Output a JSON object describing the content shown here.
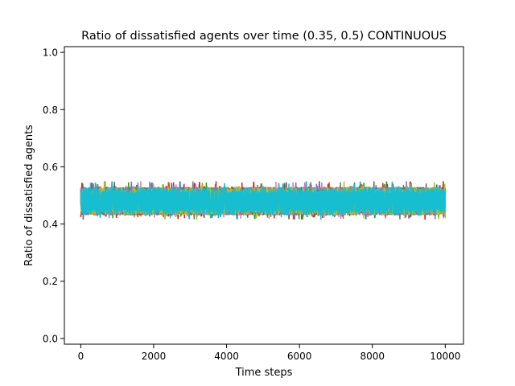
{
  "chart_data": {
    "type": "line",
    "title": "Ratio of dissatisfied agents over time (0.35, 0.5) CONTINUOUS",
    "xlabel": "Time steps",
    "ylabel": "Ratio of dissatisfied agents",
    "xlim": [
      -450,
      10500
    ],
    "ylim": [
      -0.02,
      1.02
    ],
    "x_ticks": [
      0,
      2000,
      4000,
      6000,
      8000,
      10000
    ],
    "y_ticks": [
      0.0,
      0.2,
      0.4,
      0.6,
      0.8,
      1.0
    ],
    "y_tick_labels": [
      "0.0",
      "0.2",
      "0.4",
      "0.6",
      "0.8",
      "1.0"
    ],
    "grid": false,
    "legend": "none",
    "x_range": [
      0,
      10000
    ],
    "series_count": 10,
    "series_mean": 0.48,
    "series_band": [
      0.43,
      0.53
    ],
    "series_extremes": [
      0.415,
      0.55
    ],
    "series_colors": [
      "#1f77b4",
      "#ff7f0e",
      "#2ca02c",
      "#d62728",
      "#9467bd",
      "#8c564b",
      "#e377c2",
      "#7f7f7f",
      "#bcbd22",
      "#17becf"
    ]
  }
}
